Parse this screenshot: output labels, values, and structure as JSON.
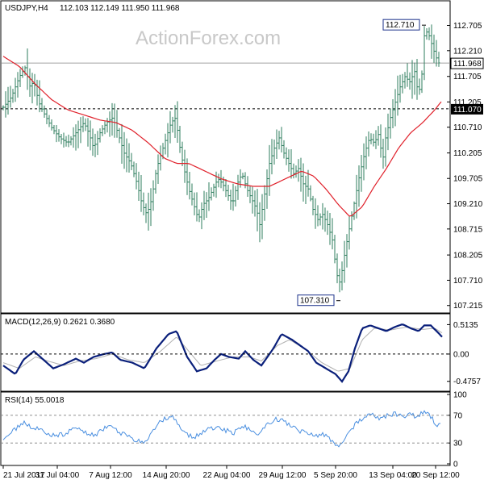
{
  "header": {
    "symbol": "USDJPY,H4",
    "ohlc": "112.103 112.149 111.950 111.968"
  },
  "watermark": "ActionForex.com",
  "colors": {
    "bars": "#2e7d5e",
    "ma": "#e0202a",
    "macd": "#0a1f7a",
    "signal": "#b0b0b0",
    "rsi": "#4a8fe0",
    "grid": "#808080",
    "label_box": "#1a2f8a"
  },
  "chart_data": [
    {
      "type": "ohlc",
      "title": "USDJPY,H4",
      "ylim": [
        107.1,
        112.95
      ],
      "y_ticks": [
        "112.705",
        "112.210",
        "111.705",
        "111.205",
        "110.710",
        "110.205",
        "109.705",
        "109.210",
        "108.715",
        "108.205",
        "107.710",
        "107.215"
      ],
      "y_tick_values": [
        112.705,
        112.21,
        111.705,
        111.205,
        110.71,
        110.205,
        109.705,
        109.21,
        108.715,
        108.205,
        107.71,
        107.215
      ],
      "x_labels": [
        "21 Jul 2017",
        "31 Jul 04:00",
        "7 Aug 12:00",
        "14 Aug 20:00",
        "22 Aug 04:00",
        "29 Aug 12:00",
        "5 Sep 20:00",
        "13 Sep 04:00",
        "20 Sep 12:00"
      ],
      "price_points": [
        [
          0,
          111.1
        ],
        [
          10,
          111.3
        ],
        [
          20,
          111.7
        ],
        [
          28,
          111.9
        ],
        [
          32,
          111.5
        ],
        [
          38,
          111.6
        ],
        [
          44,
          111.2
        ],
        [
          50,
          111.0
        ],
        [
          60,
          110.7
        ],
        [
          70,
          110.5
        ],
        [
          80,
          110.4
        ],
        [
          90,
          110.6
        ],
        [
          100,
          110.8
        ],
        [
          106,
          110.6
        ],
        [
          112,
          110.3
        ],
        [
          120,
          110.6
        ],
        [
          128,
          110.8
        ],
        [
          136,
          110.9
        ],
        [
          142,
          110.6
        ],
        [
          150,
          110.2
        ],
        [
          158,
          110.0
        ],
        [
          166,
          109.6
        ],
        [
          172,
          109.2
        ],
        [
          178,
          109.0
        ],
        [
          184,
          109.3
        ],
        [
          190,
          109.9
        ],
        [
          196,
          110.2
        ],
        [
          202,
          110.5
        ],
        [
          208,
          110.8
        ],
        [
          214,
          110.9
        ],
        [
          218,
          110.4
        ],
        [
          224,
          109.9
        ],
        [
          230,
          109.5
        ],
        [
          236,
          109.2
        ],
        [
          242,
          108.9
        ],
        [
          248,
          109.2
        ],
        [
          254,
          109.3
        ],
        [
          260,
          109.5
        ],
        [
          266,
          109.7
        ],
        [
          272,
          109.6
        ],
        [
          278,
          109.4
        ],
        [
          284,
          109.2
        ],
        [
          290,
          109.6
        ],
        [
          296,
          109.8
        ],
        [
          302,
          109.5
        ],
        [
          308,
          109.3
        ],
        [
          314,
          109.1
        ],
        [
          318,
          108.8
        ],
        [
          324,
          109.4
        ],
        [
          330,
          110.0
        ],
        [
          336,
          110.3
        ],
        [
          342,
          110.5
        ],
        [
          348,
          110.2
        ],
        [
          354,
          110.0
        ],
        [
          360,
          109.8
        ],
        [
          366,
          109.9
        ],
        [
          372,
          109.6
        ],
        [
          378,
          109.5
        ],
        [
          384,
          109.1
        ],
        [
          390,
          108.9
        ],
        [
          396,
          109.0
        ],
        [
          402,
          108.8
        ],
        [
          408,
          108.5
        ],
        [
          412,
          108.0
        ],
        [
          416,
          107.6
        ],
        [
          420,
          107.9
        ],
        [
          424,
          108.3
        ],
        [
          430,
          108.8
        ],
        [
          436,
          109.3
        ],
        [
          442,
          109.8
        ],
        [
          448,
          110.2
        ],
        [
          454,
          110.5
        ],
        [
          460,
          110.4
        ],
        [
          466,
          110.6
        ],
        [
          470,
          110.0
        ],
        [
          474,
          110.5
        ],
        [
          480,
          110.9
        ],
        [
          486,
          111.2
        ],
        [
          492,
          111.5
        ],
        [
          498,
          111.7
        ],
        [
          504,
          111.6
        ],
        [
          510,
          111.8
        ],
        [
          514,
          111.4
        ],
        [
          518,
          111.5
        ],
        [
          522,
          112.5
        ],
        [
          526,
          112.6
        ],
        [
          530,
          112.4
        ],
        [
          536,
          112.1
        ],
        [
          540,
          111.97
        ]
      ],
      "ma_points": [
        [
          0,
          112.1
        ],
        [
          20,
          111.9
        ],
        [
          40,
          111.55
        ],
        [
          60,
          111.25
        ],
        [
          80,
          111.05
        ],
        [
          100,
          110.95
        ],
        [
          120,
          110.85
        ],
        [
          140,
          110.8
        ],
        [
          160,
          110.65
        ],
        [
          180,
          110.4
        ],
        [
          200,
          110.1
        ],
        [
          215,
          110.0
        ],
        [
          230,
          110.0
        ],
        [
          250,
          109.85
        ],
        [
          270,
          109.7
        ],
        [
          290,
          109.6
        ],
        [
          310,
          109.55
        ],
        [
          330,
          109.55
        ],
        [
          350,
          109.7
        ],
        [
          370,
          109.85
        ],
        [
          385,
          109.75
        ],
        [
          400,
          109.5
        ],
        [
          415,
          109.2
        ],
        [
          430,
          108.95
        ],
        [
          445,
          109.15
        ],
        [
          460,
          109.55
        ],
        [
          475,
          109.9
        ],
        [
          490,
          110.3
        ],
        [
          505,
          110.6
        ],
        [
          520,
          110.8
        ],
        [
          535,
          111.05
        ],
        [
          545,
          111.25
        ]
      ],
      "high_label": {
        "value": "112.710",
        "x": 522,
        "price": 112.71
      },
      "low_label": {
        "value": "107.310",
        "x": 416,
        "price": 107.31
      },
      "current_price": "111.968",
      "hline": {
        "label": "111.070",
        "price": 111.07
      }
    },
    {
      "type": "line",
      "title": "MACD(12,26,9) 0.2621 0.3680",
      "name": "MACD(12,26,9)",
      "values_text": "0.2621 0.3680",
      "ylim": [
        -0.62,
        0.66
      ],
      "y_ticks": [
        "0.5135",
        "0.00",
        "-0.4757"
      ],
      "y_tick_values": [
        0.5135,
        0.0,
        -0.4757
      ],
      "macd_points": [
        [
          0,
          -0.2
        ],
        [
          15,
          -0.35
        ],
        [
          25,
          -0.1
        ],
        [
          38,
          0.05
        ],
        [
          50,
          -0.1
        ],
        [
          62,
          -0.25
        ],
        [
          75,
          -0.18
        ],
        [
          90,
          -0.08
        ],
        [
          100,
          -0.15
        ],
        [
          112,
          -0.05
        ],
        [
          125,
          0.0
        ],
        [
          135,
          0.03
        ],
        [
          145,
          -0.1
        ],
        [
          160,
          -0.15
        ],
        [
          175,
          -0.25
        ],
        [
          190,
          0.1
        ],
        [
          205,
          0.35
        ],
        [
          215,
          0.4
        ],
        [
          228,
          -0.05
        ],
        [
          240,
          -0.3
        ],
        [
          252,
          -0.25
        ],
        [
          262,
          -0.1
        ],
        [
          270,
          0.0
        ],
        [
          280,
          -0.05
        ],
        [
          292,
          -0.08
        ],
        [
          300,
          0.05
        ],
        [
          310,
          -0.1
        ],
        [
          320,
          -0.2
        ],
        [
          335,
          0.1
        ],
        [
          345,
          0.35
        ],
        [
          358,
          0.25
        ],
        [
          368,
          0.15
        ],
        [
          378,
          0.05
        ],
        [
          388,
          -0.15
        ],
        [
          400,
          -0.25
        ],
        [
          412,
          -0.35
        ],
        [
          420,
          -0.48
        ],
        [
          428,
          -0.3
        ],
        [
          436,
          0.1
        ],
        [
          445,
          0.45
        ],
        [
          455,
          0.5
        ],
        [
          465,
          0.45
        ],
        [
          475,
          0.4
        ],
        [
          485,
          0.47
        ],
        [
          495,
          0.52
        ],
        [
          505,
          0.45
        ],
        [
          515,
          0.4
        ],
        [
          522,
          0.5
        ],
        [
          530,
          0.5
        ],
        [
          540,
          0.36
        ],
        [
          544,
          0.3
        ]
      ],
      "signal_points": [
        [
          0,
          -0.15
        ],
        [
          20,
          -0.25
        ],
        [
          40,
          -0.05
        ],
        [
          55,
          -0.12
        ],
        [
          75,
          -0.2
        ],
        [
          95,
          -0.12
        ],
        [
          115,
          -0.08
        ],
        [
          135,
          0.0
        ],
        [
          155,
          -0.1
        ],
        [
          175,
          -0.15
        ],
        [
          195,
          0.05
        ],
        [
          215,
          0.3
        ],
        [
          230,
          0.05
        ],
        [
          245,
          -0.2
        ],
        [
          265,
          -0.12
        ],
        [
          285,
          -0.05
        ],
        [
          305,
          -0.05
        ],
        [
          320,
          -0.12
        ],
        [
          340,
          0.15
        ],
        [
          355,
          0.25
        ],
        [
          375,
          0.08
        ],
        [
          395,
          -0.15
        ],
        [
          415,
          -0.3
        ],
        [
          430,
          -0.25
        ],
        [
          445,
          0.25
        ],
        [
          460,
          0.45
        ],
        [
          480,
          0.42
        ],
        [
          500,
          0.47
        ],
        [
          520,
          0.43
        ],
        [
          535,
          0.45
        ],
        [
          544,
          0.37
        ]
      ]
    },
    {
      "type": "line",
      "title": "RSI(14) 55.0018",
      "name": "RSI(14)",
      "values_text": "55.0018",
      "ylim": [
        0,
        100
      ],
      "y_ticks": [
        "100",
        "70",
        "30",
        "0"
      ],
      "y_tick_values": [
        100,
        70,
        30,
        0
      ],
      "rsi_points": [
        [
          0,
          38
        ],
        [
          10,
          45
        ],
        [
          20,
          55
        ],
        [
          28,
          60
        ],
        [
          36,
          48
        ],
        [
          44,
          52
        ],
        [
          54,
          45
        ],
        [
          64,
          40
        ],
        [
          74,
          42
        ],
        [
          84,
          48
        ],
        [
          94,
          52
        ],
        [
          104,
          45
        ],
        [
          114,
          42
        ],
        [
          124,
          50
        ],
        [
          134,
          58
        ],
        [
          144,
          45
        ],
        [
          154,
          40
        ],
        [
          164,
          35
        ],
        [
          172,
          30
        ],
        [
          180,
          38
        ],
        [
          190,
          55
        ],
        [
          200,
          65
        ],
        [
          210,
          68
        ],
        [
          218,
          55
        ],
        [
          226,
          42
        ],
        [
          236,
          38
        ],
        [
          246,
          45
        ],
        [
          256,
          50
        ],
        [
          266,
          55
        ],
        [
          276,
          48
        ],
        [
          286,
          45
        ],
        [
          296,
          55
        ],
        [
          306,
          50
        ],
        [
          316,
          40
        ],
        [
          326,
          55
        ],
        [
          336,
          65
        ],
        [
          346,
          62
        ],
        [
          356,
          55
        ],
        [
          366,
          48
        ],
        [
          376,
          45
        ],
        [
          386,
          40
        ],
        [
          396,
          42
        ],
        [
          406,
          35
        ],
        [
          414,
          25
        ],
        [
          420,
          32
        ],
        [
          428,
          45
        ],
        [
          438,
          58
        ],
        [
          448,
          68
        ],
        [
          458,
          70
        ],
        [
          468,
          65
        ],
        [
          476,
          70
        ],
        [
          486,
          72
        ],
        [
          496,
          68
        ],
        [
          506,
          72
        ],
        [
          514,
          66
        ],
        [
          520,
          75
        ],
        [
          526,
          72
        ],
        [
          532,
          65
        ],
        [
          536,
          55
        ],
        [
          542,
          55
        ]
      ]
    }
  ]
}
